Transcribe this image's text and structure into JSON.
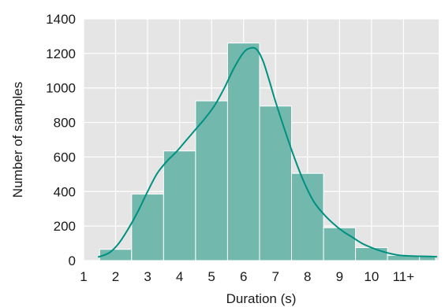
{
  "chart_data": {
    "type": "bar",
    "subtype": "histogram-with-kde",
    "title": "",
    "xlabel": "Duration (s)",
    "ylabel": "Number of samples",
    "xlim": [
      1,
      12.1
    ],
    "ylim": [
      0,
      1400
    ],
    "x_ticks": [
      {
        "value": 1,
        "label": "1"
      },
      {
        "value": 2,
        "label": "2"
      },
      {
        "value": 3,
        "label": "3"
      },
      {
        "value": 4,
        "label": "4"
      },
      {
        "value": 5,
        "label": "5"
      },
      {
        "value": 6,
        "label": "6"
      },
      {
        "value": 7,
        "label": "7"
      },
      {
        "value": 8,
        "label": "8"
      },
      {
        "value": 9,
        "label": "9"
      },
      {
        "value": 10,
        "label": "10"
      },
      {
        "value": 11,
        "label": "11+"
      }
    ],
    "y_ticks": [
      0,
      200,
      400,
      600,
      800,
      1000,
      1200,
      1400
    ],
    "bins": [
      {
        "start": 1.5,
        "end": 2.5,
        "value": 65
      },
      {
        "start": 2.5,
        "end": 3.5,
        "value": 385
      },
      {
        "start": 3.5,
        "end": 4.5,
        "value": 635
      },
      {
        "start": 4.5,
        "end": 5.5,
        "value": 925
      },
      {
        "start": 5.5,
        "end": 6.5,
        "value": 1260
      },
      {
        "start": 6.5,
        "end": 7.5,
        "value": 895
      },
      {
        "start": 7.5,
        "end": 8.5,
        "value": 505
      },
      {
        "start": 8.5,
        "end": 9.5,
        "value": 190
      },
      {
        "start": 9.5,
        "end": 10.5,
        "value": 75
      },
      {
        "start": 10.5,
        "end": 11.5,
        "value": 30
      },
      {
        "start": 11.5,
        "end": 12.0,
        "value": 25
      }
    ],
    "kde": {
      "x": [
        1.45,
        1.8,
        2.1,
        2.4,
        2.7,
        3.0,
        3.3,
        3.6,
        3.9,
        4.2,
        4.5,
        4.8,
        5.1,
        5.4,
        5.7,
        6.0,
        6.2,
        6.4,
        6.6,
        6.8,
        7.0,
        7.3,
        7.6,
        7.9,
        8.2,
        8.5,
        8.8,
        9.1,
        9.4,
        9.7,
        10.0,
        10.3,
        10.6,
        10.9,
        11.2,
        11.5,
        11.8,
        12.05
      ],
      "y": [
        20,
        45,
        100,
        185,
        285,
        400,
        505,
        575,
        630,
        695,
        760,
        825,
        900,
        1000,
        1115,
        1205,
        1230,
        1225,
        1160,
        1045,
        920,
        750,
        590,
        450,
        340,
        270,
        215,
        170,
        135,
        100,
        75,
        55,
        40,
        30,
        27,
        25,
        24,
        22
      ]
    },
    "grid": true,
    "legend": "none",
    "colors": {
      "background": "#e5e5e5",
      "grid": "#ffffff",
      "bar_fill": "#72b8ad",
      "bar_edge": "#ffffff",
      "kde_line": "#009080"
    }
  }
}
